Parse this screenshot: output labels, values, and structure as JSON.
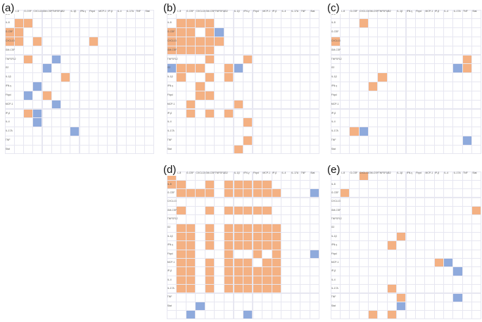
{
  "colors": {
    "background": "#ffffff",
    "grid": "#e7e7f1",
    "orange": "#f4b183",
    "blue": "#8faadc"
  },
  "panels": [
    {
      "label": "(a)",
      "columns": [
        "IL-6",
        "IL-8",
        "G-CSF",
        "CXCL13",
        "GM-CSF",
        "TNFSF12",
        "G2",
        "IL-1β",
        "IFN-γ",
        "Fhpd",
        "MCP-1",
        "IP-β",
        "IL-4",
        "IL-17A",
        "TNF",
        "Stat"
      ],
      "rows": [
        "IL-6",
        "IL-8",
        "G-CSF",
        "CXCL13",
        "GM-CSF",
        "TNFSF12",
        "G2",
        "IL-1β",
        "IFN-γ",
        "Fhpd",
        "MCP-1",
        "IP-β",
        "IL-4",
        "IL-17A",
        "TNF",
        "Stat"
      ],
      "orange": [
        [
          1,
          1
        ],
        [
          1,
          2
        ],
        [
          2,
          0
        ],
        [
          2,
          1
        ],
        [
          3,
          0
        ],
        [
          3,
          1
        ],
        [
          3,
          3
        ],
        [
          3,
          9
        ],
        [
          5,
          2
        ],
        [
          7,
          6
        ],
        [
          9,
          4
        ],
        [
          11,
          2
        ]
      ],
      "blue": [
        [
          5,
          5
        ],
        [
          6,
          4
        ],
        [
          8,
          3
        ],
        [
          9,
          2
        ],
        [
          10,
          5
        ],
        [
          11,
          3
        ],
        [
          12,
          3
        ],
        [
          13,
          7
        ]
      ]
    },
    {
      "label": "(b)",
      "columns": [
        "IL-6",
        "IL-8",
        "G-CSF",
        "CXCL13",
        "GM-CSF",
        "TNFSF12",
        "G2",
        "IL-1β",
        "IFN-γ",
        "Fhpd",
        "MCP-1",
        "IP-β",
        "IL-4",
        "IL-17A",
        "TNF",
        "Stat"
      ],
      "rows": [
        "IL-6",
        "IL-8",
        "G-CSF",
        "CXCL13",
        "GM-CSF",
        "TNFSF12",
        "G2",
        "IL-1β",
        "IFN-γ",
        "Fhpd",
        "MCP-1",
        "IP-β",
        "IL-4",
        "IL-17A",
        "TNF",
        "Stat"
      ],
      "orange": [
        [
          1,
          1
        ],
        [
          1,
          2
        ],
        [
          1,
          3
        ],
        [
          1,
          4
        ],
        [
          2,
          0
        ],
        [
          2,
          2
        ],
        [
          2,
          4
        ],
        [
          2,
          1
        ],
        [
          3,
          0
        ],
        [
          3,
          1
        ],
        [
          3,
          2
        ],
        [
          3,
          3
        ],
        [
          3,
          4
        ],
        [
          3,
          5
        ],
        [
          4,
          0
        ],
        [
          4,
          1
        ],
        [
          4,
          2
        ],
        [
          4,
          3
        ],
        [
          4,
          4
        ],
        [
          5,
          4
        ],
        [
          6,
          1
        ],
        [
          6,
          2
        ],
        [
          6,
          3
        ],
        [
          5,
          8
        ],
        [
          6,
          6
        ],
        [
          7,
          1
        ],
        [
          7,
          4
        ],
        [
          7,
          6
        ],
        [
          8,
          3
        ],
        [
          9,
          3
        ],
        [
          9,
          4
        ],
        [
          10,
          2
        ],
        [
          10,
          7
        ],
        [
          11,
          2
        ],
        [
          11,
          4
        ],
        [
          11,
          6
        ],
        [
          12,
          8
        ],
        [
          14,
          8
        ],
        [
          15,
          7
        ]
      ],
      "blue": [
        [
          2,
          5
        ],
        [
          6,
          0
        ],
        [
          6,
          7
        ]
      ]
    },
    {
      "label": "(c)",
      "columns": [
        "IL-6",
        "IL-8",
        "G-CSF",
        "CXCL13",
        "GM-CSF",
        "TNFSF12",
        "G2",
        "IL-1β",
        "IFN-γ",
        "Fhpd",
        "MCP-1",
        "IP-β",
        "IL-4",
        "IL-17A",
        "TNF",
        "Stat"
      ],
      "rows": [
        "IL-6",
        "IL-8",
        "G-CSF",
        "CXCL13",
        "GM-CSF",
        "TNFSF12",
        "G2",
        "IL-1β",
        "IFN-γ",
        "Fhpd",
        "MCP-1",
        "IP-β",
        "IL-4",
        "IL-17A",
        "TNF",
        "Stat"
      ],
      "orange": [
        [
          1,
          3
        ],
        [
          3,
          0
        ],
        [
          5,
          14
        ],
        [
          6,
          14
        ],
        [
          7,
          5
        ],
        [
          8,
          4
        ],
        [
          13,
          2
        ]
      ],
      "blue": [
        [
          6,
          13
        ],
        [
          13,
          3
        ],
        [
          14,
          14
        ]
      ]
    },
    {
      "label": "(d)",
      "columns": [
        "IL-6",
        "IL-8",
        "G-CSF",
        "CXCL13",
        "GM-CSF",
        "TNFSF12",
        "G2",
        "IL-1β",
        "IFN-γ",
        "Fhpd",
        "MCP-1",
        "IP-β",
        "IL-4",
        "IL-17A",
        "TNF",
        "Stat"
      ],
      "rows": [
        "IL-6",
        "IL-8",
        "G-CSF",
        "CXCL13",
        "GM-CSF",
        "TNFSF12",
        "G2",
        "IL-1β",
        "IFN-γ",
        "Fhpd",
        "MCP-1",
        "IP-β",
        "IL-4",
        "IL-17A",
        "TNF",
        "Stat"
      ],
      "orange": [
        [
          0,
          0
        ],
        [
          1,
          0
        ],
        [
          1,
          1
        ],
        [
          1,
          4
        ],
        [
          1,
          6
        ],
        [
          1,
          7
        ],
        [
          1,
          8
        ],
        [
          1,
          9
        ],
        [
          1,
          10
        ],
        [
          2,
          1
        ],
        [
          2,
          2
        ],
        [
          2,
          3
        ],
        [
          2,
          4
        ],
        [
          2,
          6
        ],
        [
          2,
          7
        ],
        [
          2,
          8
        ],
        [
          2,
          9
        ],
        [
          2,
          10
        ],
        [
          2,
          11
        ],
        [
          4,
          1
        ],
        [
          4,
          4
        ],
        [
          4,
          6
        ],
        [
          4,
          7
        ],
        [
          4,
          8
        ],
        [
          4,
          9
        ],
        [
          4,
          10
        ],
        [
          6,
          1
        ],
        [
          6,
          2
        ],
        [
          6,
          4
        ],
        [
          6,
          6
        ],
        [
          6,
          7
        ],
        [
          6,
          8
        ],
        [
          6,
          9
        ],
        [
          6,
          10
        ],
        [
          6,
          11
        ],
        [
          7,
          1
        ],
        [
          7,
          2
        ],
        [
          7,
          4
        ],
        [
          7,
          6
        ],
        [
          7,
          7
        ],
        [
          7,
          8
        ],
        [
          7,
          9
        ],
        [
          7,
          10
        ],
        [
          7,
          11
        ],
        [
          8,
          1
        ],
        [
          8,
          2
        ],
        [
          8,
          4
        ],
        [
          8,
          6
        ],
        [
          8,
          7
        ],
        [
          8,
          8
        ],
        [
          8,
          9
        ],
        [
          8,
          10
        ],
        [
          8,
          11
        ],
        [
          9,
          1
        ],
        [
          9,
          2
        ],
        [
          9,
          6
        ],
        [
          9,
          9
        ],
        [
          9,
          11
        ],
        [
          10,
          1
        ],
        [
          10,
          2
        ],
        [
          10,
          4
        ],
        [
          10,
          6
        ],
        [
          10,
          7
        ],
        [
          10,
          8
        ],
        [
          10,
          10
        ],
        [
          10,
          11
        ],
        [
          11,
          1
        ],
        [
          11,
          2
        ],
        [
          11,
          4
        ],
        [
          11,
          6
        ],
        [
          11,
          7
        ],
        [
          11,
          8
        ],
        [
          11,
          9
        ],
        [
          11,
          10
        ],
        [
          11,
          11
        ],
        [
          12,
          1
        ],
        [
          12,
          2
        ],
        [
          12,
          4
        ],
        [
          12,
          6
        ],
        [
          12,
          7
        ],
        [
          12,
          8
        ],
        [
          12,
          9
        ],
        [
          12,
          10
        ],
        [
          12,
          11
        ],
        [
          13,
          1
        ],
        [
          13,
          2
        ],
        [
          13,
          4
        ],
        [
          13,
          6
        ],
        [
          13,
          7
        ],
        [
          13,
          8
        ],
        [
          13,
          9
        ],
        [
          13,
          10
        ],
        [
          13,
          11
        ]
      ],
      "blue": [
        [
          2,
          15
        ],
        [
          9,
          15
        ],
        [
          15,
          3
        ],
        [
          16,
          2
        ],
        [
          16,
          8
        ]
      ]
    },
    {
      "label": "(e)",
      "columns": [
        "IL-6",
        "IL-8",
        "G-CSF",
        "CXCL13",
        "GM-CSF",
        "TNFSF12",
        "G2",
        "IL-1β",
        "IFN-γ",
        "Fhpd",
        "MCP-1",
        "IP-β",
        "IL-4",
        "IL-17A",
        "TNF",
        "Stat"
      ],
      "rows": [
        "IL-6",
        "IL-8",
        "G-CSF",
        "CXCL13",
        "GM-CSF",
        "TNFSF12",
        "G2",
        "IL-1β",
        "IFN-γ",
        "Fhpd",
        "MCP-1",
        "IP-β",
        "IL-4",
        "IL-17A",
        "TNF",
        "Stat"
      ],
      "orange": [
        [
          0,
          3
        ],
        [
          2,
          1
        ],
        [
          4,
          15
        ],
        [
          7,
          7
        ],
        [
          8,
          6
        ],
        [
          10,
          11
        ],
        [
          13,
          6
        ],
        [
          14,
          7
        ],
        [
          16,
          4
        ],
        [
          16,
          6
        ]
      ],
      "blue": [
        [
          10,
          12
        ],
        [
          11,
          13
        ],
        [
          14,
          13
        ],
        [
          15,
          7
        ]
      ]
    }
  ]
}
